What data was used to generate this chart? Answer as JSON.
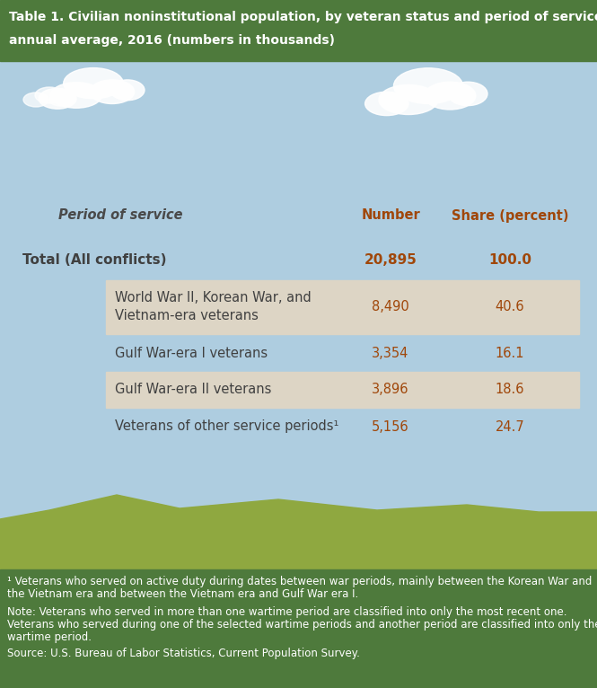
{
  "title_line1": "Table 1. Civilian noninstitutional population, by veteran status and period of service,",
  "title_line2": "annual average, 2016 (numbers in thousands)",
  "title_bg": "#4e7a3c",
  "title_text_color": "#ffffff",
  "sky_color": "#aecde0",
  "table_header": [
    "Period of service",
    "Number",
    "Share (percent)"
  ],
  "header_color_label": "#4a4a4a",
  "header_color_num": "#a0470a",
  "rows": [
    {
      "label": "Total (All conflicts)",
      "label2": "",
      "number": "20,895",
      "share": "100.0",
      "indented": false,
      "shaded": false,
      "bold": true,
      "two_line": false
    },
    {
      "label": "World War II, Korean War, and",
      "label2": "Vietnam-era veterans",
      "number": "8,490",
      "share": "40.6",
      "indented": true,
      "shaded": true,
      "bold": false,
      "two_line": true
    },
    {
      "label": "Gulf War-era I veterans",
      "label2": "",
      "number": "3,354",
      "share": "16.1",
      "indented": true,
      "shaded": false,
      "bold": false,
      "two_line": false
    },
    {
      "label": "Gulf War-era II veterans",
      "label2": "",
      "number": "3,896",
      "share": "18.6",
      "indented": true,
      "shaded": true,
      "bold": false,
      "two_line": false
    },
    {
      "label": "Veterans of other service periods¹",
      "label2": "",
      "number": "5,156",
      "share": "24.7",
      "indented": true,
      "shaded": false,
      "bold": false,
      "two_line": false
    }
  ],
  "row_bg_shaded": "#ddd5c5",
  "label_color": "#404040",
  "number_color": "#a0470a",
  "share_color": "#a0470a",
  "footer_bg": "#4e7a3c",
  "footer_text_color": "#ffffff",
  "fn1_a": "¹ Veterans who served on active duty during dates between war periods, mainly between the Korean War and",
  "fn1_b": "the Vietnam era and between the Vietnam era and Gulf War era I.",
  "note_a": "Note: Veterans who served in more than one wartime period are classified into only the most recent one.",
  "note_b": "Veterans who served during one of the selected wartime periods and another period are classified into only the",
  "note_c": "wartime period.",
  "source": "Source: U.S. Bureau of Labor Statistics, Current Population Survey.",
  "grass_color": "#8fa840",
  "grass_dark": "#6a7e2a"
}
